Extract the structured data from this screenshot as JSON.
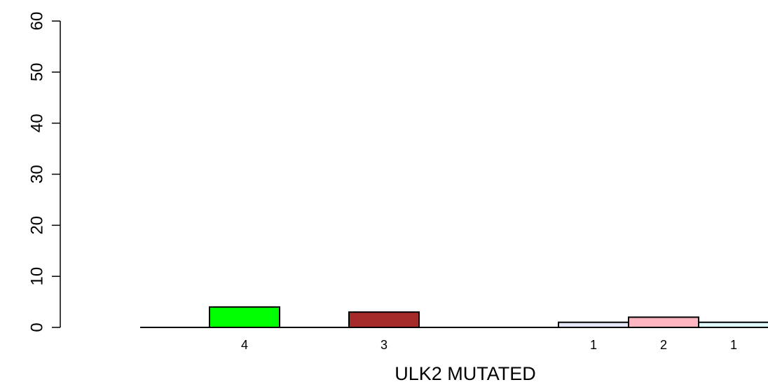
{
  "chart_data": {
    "type": "bar",
    "xlabel": "ULK2 MUTATED",
    "ylabel": "",
    "ylim": [
      0,
      60
    ],
    "y_ticks": [
      0,
      10,
      20,
      30,
      40,
      50,
      60
    ],
    "grid": false,
    "legend": "none",
    "bars": [
      {
        "value": 4,
        "label": "4",
        "color": "#00ff00"
      },
      {
        "value": 3,
        "label": "3",
        "color": "#a52a2a"
      },
      {
        "value": 1,
        "label": "1",
        "color": "#e6e6fa"
      },
      {
        "value": 2,
        "label": "2",
        "color": "#ffb6c1"
      },
      {
        "value": 1,
        "label": "1",
        "color": "#e0ffff"
      }
    ]
  }
}
